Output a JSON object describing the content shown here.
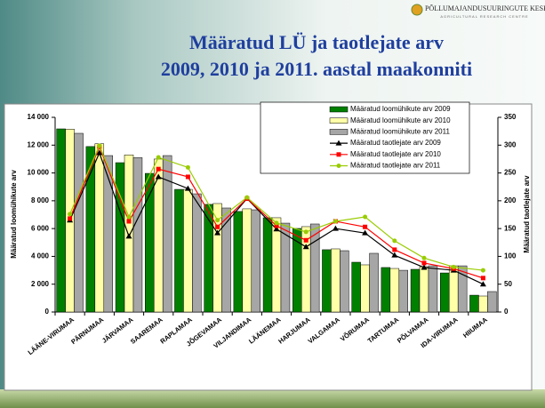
{
  "logo": {
    "name": "PÕLLUMAJANDUSUURINGUTE KESKUS",
    "subtitle": "AGRICULTURAL RESEARCH CENTRE"
  },
  "chart_data": {
    "type": "bar",
    "title": [
      "Määratud LÜ ja taotlejate arv",
      "2009, 2010 ja 2011. aastal maakonniti"
    ],
    "y_label": "Määratud loomühikute arv",
    "y2_label": "Määratud taotlejate arv",
    "categories": [
      "LÄÄNE-VIRUMAA",
      "PÄRNUMAA",
      "JÄRVAMAA",
      "SAAREMAA",
      "RAPLAMAA",
      "JÕGEVAMAA",
      "VILJANDIMAA",
      "LÄÄNEMAA",
      "HARJUMAA",
      "VALGAMAA",
      "VÕRUMAA",
      "TARTUMAA",
      "PÕLVAMAA",
      "IDA-VIRUMAA",
      "HIIUMAA"
    ],
    "series": [
      {
        "name": "Määratud loomühikute arv 2009",
        "type": "bar",
        "color": "#008000",
        "values": [
          13170,
          11900,
          10740,
          9970,
          8820,
          7740,
          7230,
          6780,
          6010,
          4480,
          3580,
          3200,
          3070,
          2810,
          1210
        ]
      },
      {
        "name": "Määratud loomühikute arv 2010",
        "type": "bar",
        "color": "#ffffa8",
        "values": [
          13150,
          12100,
          11300,
          11000,
          8820,
          7800,
          7420,
          6780,
          6140,
          4540,
          3390,
          3130,
          3260,
          3320,
          1150
        ]
      },
      {
        "name": "Määratud loomühikute arv 2011",
        "type": "bar",
        "color": "#a6a6a6",
        "values": [
          12850,
          11250,
          11100,
          11250,
          8500,
          7480,
          7350,
          6390,
          6330,
          4410,
          4220,
          3000,
          3320,
          3320,
          1470
        ]
      },
      {
        "name": "Määratud taotlejate arv 2009",
        "type": "line",
        "axis": "y2",
        "marker": "triangle",
        "color": "#000000",
        "values": [
          165,
          286,
          136,
          243,
          222,
          142,
          204,
          149,
          117,
          150,
          142,
          102,
          80,
          75,
          50
        ]
      },
      {
        "name": "Määratud taotlejate arv 2010",
        "type": "line",
        "axis": "y2",
        "marker": "square",
        "color": "#ff0000",
        "values": [
          168,
          297,
          163,
          257,
          243,
          153,
          204,
          155,
          129,
          163,
          153,
          112,
          88,
          78,
          61
        ]
      },
      {
        "name": "Määratud taotlejate arv 2011",
        "type": "line",
        "axis": "y2",
        "marker": "circle",
        "color": "#99cc00",
        "values": [
          176,
          299,
          171,
          278,
          260,
          165,
          206,
          160,
          144,
          163,
          171,
          128,
          97,
          81,
          75
        ]
      }
    ],
    "ylim": [
      0,
      14000
    ],
    "yticks": [
      0,
      {
        "value": 2000,
        "label": "2 000"
      },
      {
        "value": 4000,
        "label": "4 000"
      },
      {
        "value": 6000,
        "label": "6 000"
      },
      {
        "value": 8000,
        "label": "8 000"
      },
      {
        "value": 10000,
        "label": "10 000"
      },
      {
        "value": 12000,
        "label": "12 000"
      },
      {
        "value": 14000,
        "label": "14 000"
      }
    ],
    "y2lim": [
      0,
      350
    ],
    "y2ticks": [
      0,
      50,
      100,
      150,
      200,
      250,
      300,
      350
    ],
    "legend": "top-right"
  }
}
